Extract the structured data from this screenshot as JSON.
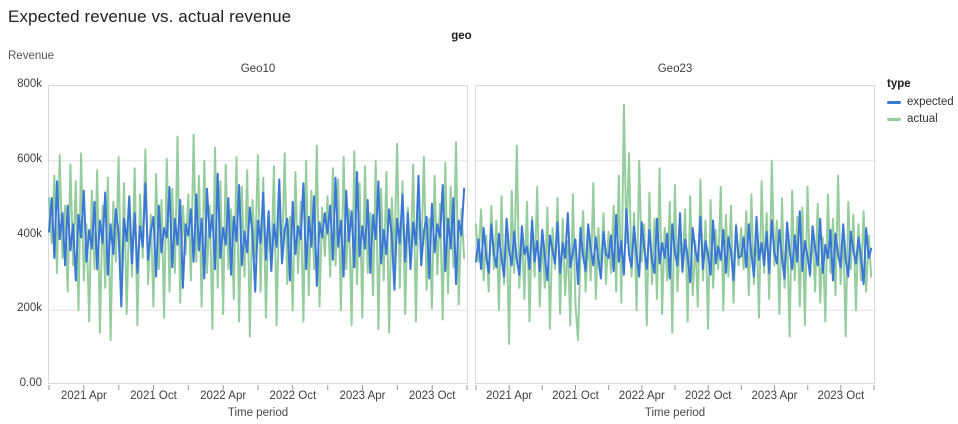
{
  "page": {
    "title": "Expected revenue vs. actual revenue"
  },
  "facet": {
    "header": "geo"
  },
  "axes": {
    "y_title": "Revenue",
    "x_title": "Time period",
    "y_ticks": [
      "0.00",
      "200k",
      "400k",
      "600k",
      "800k"
    ],
    "y_tick_values": [
      0,
      200,
      400,
      600,
      800
    ],
    "x_tick_labels": [
      "2021 Apr",
      "2021 Oct",
      "2022 Apr",
      "2022 Oct",
      "2023 Apr",
      "2023 Oct"
    ],
    "x_domain": [
      "2021-01",
      "2024-01"
    ]
  },
  "legend": {
    "title": "type",
    "items": [
      {
        "label": "expected",
        "color": "#3b77d7"
      },
      {
        "label": "actual",
        "color": "#95cd9e"
      }
    ]
  },
  "chart_data": [
    {
      "type": "line",
      "title": "Geo10",
      "xlabel": "Time period",
      "ylabel": "Revenue",
      "x_unit": "week",
      "x_domain": [
        "2021-01",
        "2024-01"
      ],
      "ylim": [
        0,
        800
      ],
      "y_unit": "thousands (k)",
      "grid": true,
      "legend_position": "right",
      "series": [
        {
          "name": "expected",
          "color": "#3b77d7",
          "values": [
            410,
            500,
            340,
            545,
            390,
            460,
            320,
            480,
            360,
            430,
            280,
            455,
            395,
            520,
            330,
            415,
            365,
            490,
            310,
            440,
            380,
            515,
            295,
            430,
            350,
            470,
            405,
            210,
            445,
            385,
            505,
            325,
            460,
            300,
            425,
            370,
            540,
            335,
            410,
            450,
            290,
            480,
            355,
            420,
            395,
            530,
            315,
            445,
            375,
            495,
            260,
            430,
            400,
            470,
            330,
            510,
            360,
            445,
            285,
            525,
            395,
            455,
            310,
            565,
            340,
            420,
            375,
            500,
            295,
            450,
            385,
            535,
            320,
            410,
            355,
            475,
            405,
            250,
            440,
            380,
            515,
            335,
            465,
            305,
            430,
            370,
            550,
            325,
            415,
            445,
            280,
            490,
            350,
            425,
            390,
            540,
            310,
            450,
            370,
            505,
            265,
            435,
            395,
            460,
            405,
            480,
            335,
            555,
            370,
            440,
            290,
            520,
            385,
            465,
            315,
            570,
            345,
            425,
            365,
            495,
            300,
            455,
            390,
            545,
            325,
            415,
            350,
            470,
            400,
            255,
            445,
            380,
            510,
            330,
            460,
            310,
            435,
            375,
            560,
            320,
            410,
            450,
            285,
            485,
            355,
            430,
            395,
            535,
            305,
            445,
            365,
            500,
            270,
            440,
            400,
            525
          ]
        },
        {
          "name": "actual",
          "color": "#95cd9e",
          "values": [
            500,
            380,
            560,
            300,
            615,
            340,
            480,
            250,
            590,
            320,
            545,
            200,
            620,
            280,
            430,
            170,
            520,
            310,
            575,
            140,
            480,
            260,
            555,
            120,
            490,
            330,
            610,
            230,
            540,
            190,
            470,
            290,
            580,
            160,
            510,
            340,
            630,
            270,
            455,
            210,
            565,
            310,
            495,
            180,
            605,
            250,
            525,
            300,
            665,
            220,
            480,
            350,
            510,
            280,
            670,
            330,
            560,
            210,
            600,
            300,
            480,
            150,
            635,
            260,
            545,
            190,
            590,
            310,
            470,
            230,
            610,
            170,
            530,
            290,
            575,
            130,
            495,
            340,
            615,
            250,
            555,
            180,
            465,
            310,
            585,
            160,
            505,
            330,
            620,
            270,
            450,
            200,
            570,
            300,
            490,
            170,
            600,
            240,
            520,
            310,
            640,
            210,
            475,
            345,
            505,
            290,
            580,
            320,
            550,
            200,
            610,
            310,
            470,
            160,
            625,
            270,
            540,
            180,
            585,
            300,
            460,
            240,
            600,
            150,
            525,
            280,
            570,
            140,
            500,
            330,
            645,
            260,
            545,
            190,
            475,
            320,
            590,
            170,
            515,
            335,
            610,
            255,
            445,
            205,
            560,
            295,
            485,
            175,
            595,
            245,
            530,
            315,
            650,
            215,
            470,
            340
          ]
        }
      ]
    },
    {
      "type": "line",
      "title": "Geo23",
      "xlabel": "Time period",
      "ylabel": "Revenue",
      "x_unit": "week",
      "x_domain": [
        "2021-01",
        "2024-01"
      ],
      "ylim": [
        0,
        800
      ],
      "y_unit": "thousands (k)",
      "grid": true,
      "legend_position": "right",
      "series": [
        {
          "name": "expected",
          "color": "#3b77d7",
          "values": [
            330,
            390,
            310,
            420,
            345,
            300,
            430,
            355,
            315,
            405,
            340,
            290,
            445,
            360,
            320,
            410,
            335,
            295,
            425,
            350,
            370,
            310,
            440,
            330,
            385,
            305,
            415,
            345,
            280,
            400,
            360,
            325,
            435,
            300,
            380,
            340,
            460,
            315,
            355,
            390,
            270,
            420,
            345,
            305,
            430,
            365,
            320,
            395,
            335,
            285,
            410,
            350,
            340,
            400,
            305,
            455,
            330,
            385,
            295,
            470,
            350,
            315,
            425,
            345,
            290,
            435,
            365,
            310,
            415,
            335,
            300,
            445,
            325,
            380,
            340,
            405,
            285,
            430,
            355,
            320,
            460,
            305,
            390,
            345,
            275,
            420,
            360,
            330,
            450,
            310,
            385,
            350,
            295,
            440,
            325,
            370,
            335,
            415,
            300,
            395,
            355,
            280,
            425,
            340,
            345,
            395,
            315,
            430,
            350,
            290,
            450,
            335,
            380,
            320,
            410,
            300,
            440,
            355,
            325,
            415,
            340,
            285,
            435,
            360,
            310,
            400,
            330,
            465,
            305,
            385,
            345,
            295,
            425,
            365,
            320,
            445,
            300,
            375,
            340,
            415,
            280,
            405,
            350,
            315,
            430,
            335,
            290,
            410,
            360,
            325,
            395,
            345,
            270,
            420,
            340,
            365
          ]
        },
        {
          "name": "actual",
          "color": "#95cd9e",
          "values": [
            430,
            330,
            470,
            280,
            400,
            250,
            480,
            310,
            440,
            200,
            505,
            270,
            430,
            110,
            520,
            300,
            640,
            260,
            410,
            230,
            490,
            170,
            450,
            290,
            530,
            210,
            400,
            260,
            475,
            150,
            420,
            310,
            500,
            190,
            445,
            240,
            385,
            160,
            510,
            220,
            120,
            340,
            465,
            250,
            395,
            280,
            540,
            230,
            420,
            300,
            460,
            270,
            410,
            300,
            480,
            250,
            560,
            220,
            750,
            380,
            620,
            290,
            460,
            200,
            600,
            330,
            430,
            160,
            515,
            270,
            445,
            230,
            580,
            190,
            420,
            280,
            490,
            140,
            535,
            250,
            410,
            300,
            470,
            170,
            505,
            240,
            385,
            210,
            550,
            280,
            440,
            150,
            495,
            260,
            415,
            310,
            530,
            200,
            455,
            290,
            480,
            220,
            430,
            320,
            420,
            310,
            465,
            240,
            510,
            270,
            430,
            180,
            545,
            300,
            460,
            230,
            600,
            320,
            440,
            190,
            500,
            260,
            415,
            130,
            520,
            280,
            450,
            210,
            475,
            160,
            530,
            290,
            410,
            250,
            485,
            220,
            395,
            170,
            510,
            300,
            445,
            240,
            560,
            270,
            420,
            130,
            490,
            310,
            455,
            200,
            430,
            280,
            465,
            250,
            400,
            290
          ]
        }
      ]
    }
  ]
}
